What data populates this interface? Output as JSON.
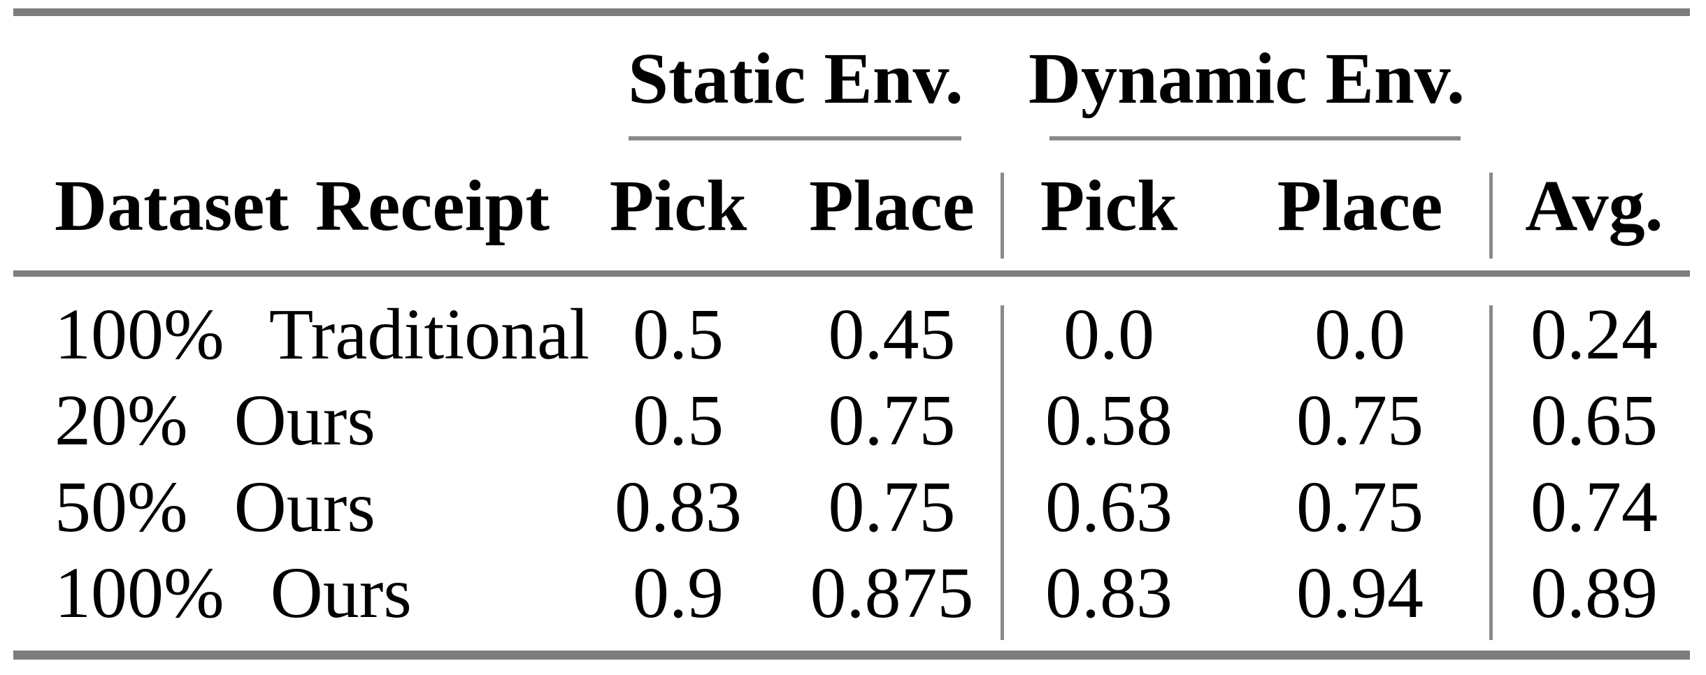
{
  "table": {
    "group_headers": [
      {
        "label": "Static Env."
      },
      {
        "label": "Dynamic Env."
      }
    ],
    "headers": {
      "dataset": "Dataset Receipt",
      "static_pick": "Pick",
      "static_place": "Place",
      "dynamic_pick": "Pick",
      "dynamic_place": "Place",
      "avg": "Avg."
    },
    "rows": [
      {
        "label": "100% Traditional",
        "static_pick": "0.5",
        "static_place": "0.45",
        "dynamic_pick": "0.0",
        "dynamic_place": "0.0",
        "avg": "0.24"
      },
      {
        "label": "20% Ours",
        "static_pick": "0.5",
        "static_place": "0.75",
        "dynamic_pick": "0.58",
        "dynamic_place": "0.75",
        "avg": "0.65"
      },
      {
        "label": "50% Ours",
        "static_pick": "0.83",
        "static_place": "0.75",
        "dynamic_pick": "0.63",
        "dynamic_place": "0.75",
        "avg": "0.74"
      },
      {
        "label": "100% Ours",
        "static_pick": "0.9",
        "static_place": "0.875",
        "dynamic_pick": "0.83",
        "dynamic_place": "0.94",
        "avg": "0.89"
      }
    ]
  },
  "colors": {
    "background": "#ffffff",
    "text": "#000000",
    "rule_thick": "#7d7d7d",
    "rule_thin": "#8a8a8a"
  }
}
